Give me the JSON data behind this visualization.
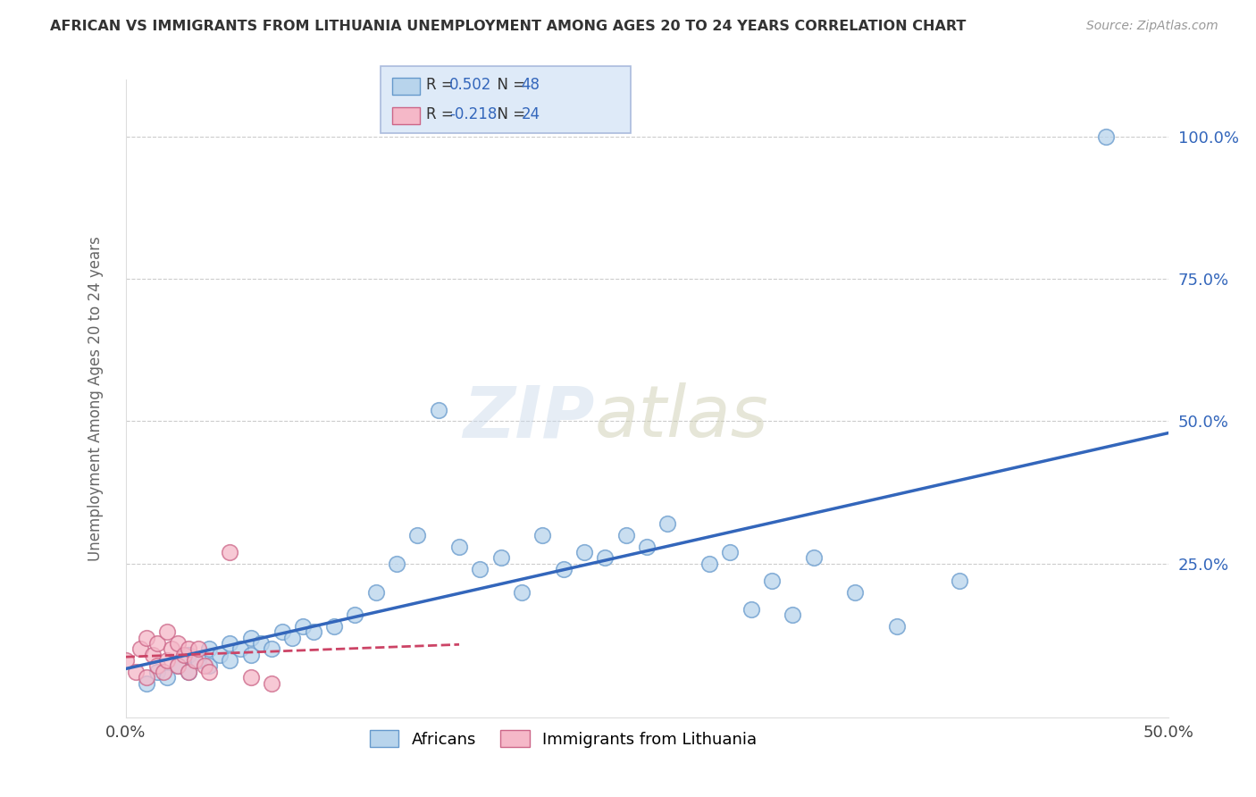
{
  "title": "AFRICAN VS IMMIGRANTS FROM LITHUANIA UNEMPLOYMENT AMONG AGES 20 TO 24 YEARS CORRELATION CHART",
  "source": "Source: ZipAtlas.com",
  "ylabel": "Unemployment Among Ages 20 to 24 years",
  "xlim": [
    0.0,
    0.5
  ],
  "ylim": [
    -0.02,
    1.1
  ],
  "ytick_positions": [
    0.25,
    0.5,
    0.75,
    1.0
  ],
  "ytick_labels": [
    "25.0%",
    "50.0%",
    "75.0%",
    "100.0%"
  ],
  "xtick_positions": [
    0.0,
    0.5
  ],
  "xtick_labels": [
    "0.0%",
    "50.0%"
  ],
  "africans_R": 0.502,
  "africans_N": 48,
  "lithuania_R": -0.218,
  "lithuania_N": 24,
  "africans_color": "#b8d4ec",
  "africans_edge_color": "#6699cc",
  "lithuania_color": "#f5b8c8",
  "lithuania_edge_color": "#cc6688",
  "africans_line_color": "#3366bb",
  "lithuania_line_color": "#cc4466",
  "legend_box_color": "#deeaf8",
  "legend_border_color": "#aabbdd",
  "r_n_color": "#3366bb",
  "africans_x": [
    0.01,
    0.015,
    0.02,
    0.025,
    0.03,
    0.03,
    0.035,
    0.04,
    0.04,
    0.045,
    0.05,
    0.05,
    0.055,
    0.06,
    0.06,
    0.065,
    0.07,
    0.075,
    0.08,
    0.085,
    0.09,
    0.1,
    0.11,
    0.12,
    0.13,
    0.14,
    0.15,
    0.16,
    0.17,
    0.18,
    0.19,
    0.2,
    0.21,
    0.22,
    0.23,
    0.24,
    0.25,
    0.26,
    0.28,
    0.29,
    0.3,
    0.31,
    0.32,
    0.33,
    0.35,
    0.37,
    0.4,
    0.47
  ],
  "africans_y": [
    0.04,
    0.06,
    0.05,
    0.07,
    0.06,
    0.09,
    0.08,
    0.07,
    0.1,
    0.09,
    0.08,
    0.11,
    0.1,
    0.09,
    0.12,
    0.11,
    0.1,
    0.13,
    0.12,
    0.14,
    0.13,
    0.14,
    0.16,
    0.2,
    0.25,
    0.3,
    0.52,
    0.28,
    0.24,
    0.26,
    0.2,
    0.3,
    0.24,
    0.27,
    0.26,
    0.3,
    0.28,
    0.32,
    0.25,
    0.27,
    0.17,
    0.22,
    0.16,
    0.26,
    0.2,
    0.14,
    0.22,
    1.0
  ],
  "lithuania_x": [
    0.0,
    0.005,
    0.007,
    0.01,
    0.01,
    0.013,
    0.015,
    0.015,
    0.018,
    0.02,
    0.02,
    0.022,
    0.025,
    0.025,
    0.028,
    0.03,
    0.03,
    0.033,
    0.035,
    0.038,
    0.04,
    0.05,
    0.06,
    0.07
  ],
  "lithuania_y": [
    0.08,
    0.06,
    0.1,
    0.05,
    0.12,
    0.09,
    0.07,
    0.11,
    0.06,
    0.08,
    0.13,
    0.1,
    0.07,
    0.11,
    0.09,
    0.06,
    0.1,
    0.08,
    0.1,
    0.07,
    0.06,
    0.27,
    0.05,
    0.04
  ]
}
